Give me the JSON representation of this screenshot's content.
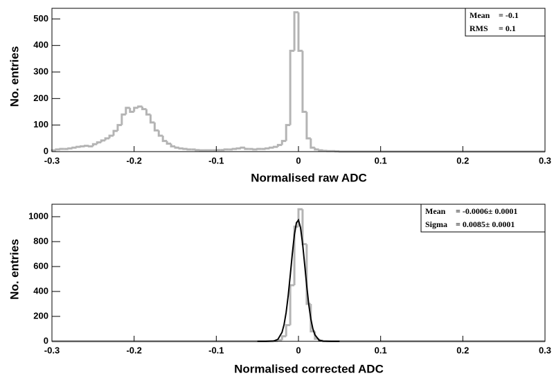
{
  "chart_data": [
    {
      "type": "histogram",
      "x_label": "Normalised raw ADC",
      "y_label": "No. entries",
      "bins": [
        -0.3,
        -0.295,
        -0.29,
        -0.285,
        -0.28,
        -0.275,
        -0.27,
        -0.265,
        -0.26,
        -0.255,
        -0.25,
        -0.245,
        -0.24,
        -0.235,
        -0.23,
        -0.225,
        -0.22,
        -0.215,
        -0.21,
        -0.205,
        -0.2,
        -0.195,
        -0.19,
        -0.185,
        -0.18,
        -0.175,
        -0.17,
        -0.165,
        -0.16,
        -0.155,
        -0.15,
        -0.145,
        -0.14,
        -0.135,
        -0.13,
        -0.125,
        -0.12,
        -0.115,
        -0.11,
        -0.105,
        -0.1,
        -0.095,
        -0.09,
        -0.085,
        -0.08,
        -0.075,
        -0.07,
        -0.065,
        -0.06,
        -0.055,
        -0.05,
        -0.045,
        -0.04,
        -0.035,
        -0.03,
        -0.025,
        -0.02,
        -0.015,
        -0.01,
        -0.005,
        0,
        0.005,
        0.01,
        0.015,
        0.02,
        0.025,
        0.03,
        0.035,
        0.04,
        0.045,
        0.05,
        0.3
      ],
      "values": [
        5,
        8,
        10,
        10,
        12,
        15,
        18,
        20,
        22,
        20,
        28,
        35,
        42,
        50,
        60,
        78,
        100,
        140,
        165,
        150,
        165,
        170,
        160,
        140,
        110,
        80,
        60,
        40,
        30,
        20,
        15,
        12,
        10,
        8,
        8,
        6,
        5,
        5,
        5,
        5,
        6,
        6,
        8,
        8,
        10,
        12,
        15,
        10,
        10,
        8,
        10,
        10,
        12,
        15,
        18,
        25,
        40,
        100,
        380,
        525,
        380,
        150,
        50,
        15,
        8,
        5,
        3,
        2,
        2,
        1,
        0
      ],
      "color": "#b4b4b4",
      "xlim": [
        -0.3,
        0.3
      ],
      "xticks": [
        -0.3,
        -0.2,
        -0.1,
        0,
        0.1,
        0.2,
        0.3
      ],
      "ylim": [
        0,
        540
      ],
      "yticks": [
        0,
        100,
        200,
        300,
        400,
        500
      ],
      "stats": [
        {
          "label": "Mean",
          "value": "= -0.1"
        },
        {
          "label": "RMS",
          "value": "= 0.1"
        }
      ]
    },
    {
      "type": "histogram",
      "x_label": "Normalised corrected ADC",
      "y_label": "No. entries",
      "bins": [
        -0.3,
        -0.035,
        -0.03,
        -0.025,
        -0.02,
        -0.015,
        -0.01,
        -0.005,
        0,
        0.005,
        0.01,
        0.015,
        0.02,
        0.025,
        0.03,
        0.035,
        0.3
      ],
      "values": [
        0,
        0,
        2,
        10,
        40,
        130,
        450,
        920,
        1060,
        780,
        300,
        80,
        20,
        5,
        1,
        0
      ],
      "color": "#b4b4b4",
      "fit": {
        "color": "#000000",
        "x": [
          -0.05,
          -0.04,
          -0.03,
          -0.025,
          -0.02,
          -0.0175,
          -0.015,
          -0.0125,
          -0.01,
          -0.0075,
          -0.005,
          -0.0025,
          0,
          0.0025,
          0.005,
          0.0075,
          0.01,
          0.0125,
          0.015,
          0.0175,
          0.02,
          0.025,
          0.03,
          0.04,
          0.05
        ],
        "values": [
          0,
          0,
          2.5,
          16,
          72,
          135,
          232,
          366,
          529,
          701,
          853,
          951,
          973,
          912,
          785,
          619,
          448,
          297,
          181,
          101,
          52,
          10,
          1.5,
          0,
          0
        ]
      },
      "xlim": [
        -0.3,
        0.3
      ],
      "xticks": [
        -0.3,
        -0.2,
        -0.1,
        0,
        0.1,
        0.2,
        0.3
      ],
      "ylim": [
        0,
        1100
      ],
      "yticks": [
        0,
        200,
        400,
        600,
        800,
        1000
      ],
      "stats": [
        {
          "label": "Mean",
          "value": "= -0.0006± 0.0001"
        },
        {
          "label": "Sigma",
          "value": "= 0.0085± 0.0001"
        }
      ]
    }
  ]
}
